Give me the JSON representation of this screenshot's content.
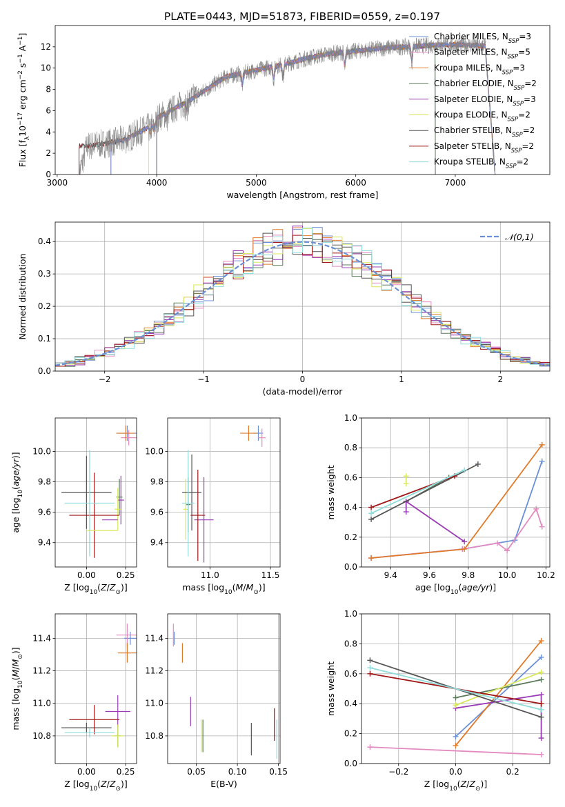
{
  "figure_title": "PLATE=0443, MJD=51873, FIBERID=0559, z=0.197",
  "colors": {
    "Chabrier MILES": "#6a8fd6",
    "Salpeter MILES": "#e38ac0",
    "Kroupa MILES": "#e07b2a",
    "Chabrier ELODIE": "#5a7a5a",
    "Salpeter ELODIE": "#9a3bb5",
    "Kroupa ELODIE": "#d8e85a",
    "Chabrier STELIB": "#555555",
    "Salpeter STELIB": "#a01818",
    "Kroupa STELIB": "#8fdcdc",
    "gaussian": "#6a8fd6"
  },
  "chart_data": [
    {
      "id": "spectrum",
      "type": "line",
      "title": "PLATE=0443, MJD=51873, FIBERID=0559, z=0.197",
      "xlabel": "wavelength [Angstrom, rest frame]",
      "ylabel": "Flux [f_λ 10^-17 erg cm^-2 s^-1 A^-1]",
      "xlim": [
        2980,
        7950
      ],
      "ylim": [
        0,
        14
      ],
      "xticks": [
        3000,
        4000,
        5000,
        6000,
        7000
      ],
      "yticks": [
        0,
        2,
        4,
        6,
        8,
        10,
        12
      ],
      "grid": false,
      "legend_position": "top-right",
      "legend": [
        {
          "model": "Chabrier MILES",
          "nssp": "3"
        },
        {
          "model": "Salpeter MILES",
          "nssp": "5"
        },
        {
          "model": "Kroupa MILES",
          "nssp": "3"
        },
        {
          "model": "Chabrier ELODIE",
          "nssp": "2"
        },
        {
          "model": "Salpeter ELODIE",
          "nssp": "3"
        },
        {
          "model": "Kroupa ELODIE",
          "nssp": "2"
        },
        {
          "model": "Chabrier STELIB",
          "nssp": "2"
        },
        {
          "model": "Salpeter STELIB",
          "nssp": "2"
        },
        {
          "model": "Kroupa STELIB",
          "nssp": "2"
        }
      ],
      "data_continuum": {
        "wavelength": [
          3220,
          3300,
          3500,
          3700,
          3800,
          3950,
          4100,
          4300,
          4500,
          4700,
          4900,
          5100,
          5300,
          5500,
          5700,
          5900,
          6100,
          6300,
          6500,
          6700,
          6900,
          7100,
          7300,
          7400
        ],
        "flux": [
          0.0,
          2.9,
          3.2,
          3.6,
          4.2,
          5.0,
          5.8,
          6.8,
          8.0,
          9.2,
          9.6,
          10.0,
          10.4,
          10.9,
          11.3,
          11.5,
          11.7,
          11.9,
          12.0,
          12.1,
          12.2,
          12.2,
          12.1,
          0.0
        ]
      },
      "model_start_wavelength": {
        "Chabrier MILES": 3540,
        "Salpeter MILES": 3540,
        "Kroupa MILES": 3540,
        "Chabrier ELODIE": 4000,
        "Salpeter ELODIE": 4000,
        "Kroupa ELODIE": 3920,
        "Chabrier STELIB": 3220,
        "Salpeter STELIB": 3220,
        "Kroupa STELIB": 3220
      },
      "model_end_wavelength": {
        "Chabrier MILES": 7400,
        "Salpeter MILES": 7400,
        "Kroupa MILES": 7400,
        "Chabrier ELODIE": 6800,
        "Salpeter ELODIE": 6800,
        "Kroupa ELODIE": 6800,
        "Chabrier STELIB": 7400,
        "Salpeter STELIB": 7400,
        "Kroupa STELIB": 7400
      }
    },
    {
      "id": "residuals",
      "type": "histogram",
      "xlabel": "(data-model)/error",
      "ylabel": "Normed distribution",
      "xlim": [
        -2.5,
        2.5
      ],
      "ylim": [
        0,
        0.46
      ],
      "xticks": [
        -2,
        -1,
        0,
        1,
        2
      ],
      "yticks": [
        0.0,
        0.1,
        0.2,
        0.3,
        0.4
      ],
      "grid": true,
      "legend": [
        {
          "label": "𝒩(0,1)",
          "style": "dashed"
        }
      ],
      "legend_position": "top-right",
      "bin_width": 0.1,
      "bin_start": -2.5,
      "approx_profile": "standard normal density with per-model scatter"
    },
    {
      "id": "age_vs_Z",
      "type": "scatter",
      "xlabel": "Z [log10(Z/Z⊙)]",
      "ylabel": "age [log10(age/yr)]",
      "xlim": [
        -0.2,
        0.32
      ],
      "ylim": [
        9.24,
        10.22
      ],
      "xticks": [
        0.0,
        0.25
      ],
      "yticks": [
        9.4,
        9.6,
        9.8,
        10.0
      ],
      "grid": true,
      "points": [
        {
          "model": "Chabrier MILES",
          "x": 0.26,
          "y": 10.12,
          "xerr": 0.06,
          "yerr": 0.05
        },
        {
          "model": "Salpeter MILES",
          "x": 0.27,
          "y": 10.09,
          "xerr": 0.05,
          "yerr": 0.05
        },
        {
          "model": "Kroupa MILES",
          "x": 0.25,
          "y": 10.12,
          "xerr": 0.06,
          "yerr": 0.05
        },
        {
          "model": "Chabrier ELODIE",
          "x": 0.21,
          "y": 9.7,
          "xerr": 0.02,
          "yerr": 0.12
        },
        {
          "model": "Salpeter ELODIE",
          "x": 0.22,
          "y": 9.68,
          "xerr": 0.02,
          "yerr": 0.16
        },
        {
          "model": "Kroupa ELODIE",
          "x": 0.2,
          "y": 9.62,
          "xerr": 0.02,
          "yerr": 0.14
        },
        {
          "model": "Chabrier STELIB",
          "x": 0.0,
          "y": 9.73,
          "xerr": 0.16,
          "yerr": 0.24
        },
        {
          "model": "Salpeter STELIB",
          "x": 0.05,
          "y": 9.58,
          "xerr": 0.16,
          "yerr": 0.28
        },
        {
          "model": "Kroupa STELIB",
          "x": 0.02,
          "y": 9.66,
          "xerr": 0.16,
          "yerr": 0.35
        },
        {
          "model": "Salpeter ELODIE",
          "x": 0.15,
          "y": 9.55,
          "xerr": 0.05,
          "yerr": 0.0
        },
        {
          "model": "Kroupa ELODIE",
          "x": 0.1,
          "y": 9.48,
          "xerr": 0.1,
          "yerr": 0.0
        }
      ]
    },
    {
      "id": "age_vs_mass",
      "type": "scatter",
      "xlabel": "mass [log10(M/M⊙)]",
      "ylabel": "",
      "xlim": [
        10.65,
        11.58
      ],
      "ylim": [
        9.24,
        10.22
      ],
      "xticks": [
        11.0,
        11.5
      ],
      "yticks": [
        9.4,
        9.6,
        9.8,
        10.0
      ],
      "grid": true,
      "points": [
        {
          "model": "Chabrier MILES",
          "x": 11.4,
          "y": 10.12,
          "xerr": 0.04,
          "yerr": 0.05
        },
        {
          "model": "Salpeter MILES",
          "x": 11.43,
          "y": 10.09,
          "xerr": 0.03,
          "yerr": 0.06
        },
        {
          "model": "Kroupa MILES",
          "x": 11.32,
          "y": 10.12,
          "xerr": 0.07,
          "yerr": 0.05
        },
        {
          "model": "Chabrier ELODIE",
          "x": 10.82,
          "y": 9.65,
          "xerr": 0.02,
          "yerr": 0.18
        },
        {
          "model": "Salpeter ELODIE",
          "x": 10.95,
          "y": 9.55,
          "xerr": 0.08,
          "yerr": 0.28
        },
        {
          "model": "Kroupa ELODIE",
          "x": 10.8,
          "y": 9.62,
          "xerr": 0.02,
          "yerr": 0.2
        },
        {
          "model": "Chabrier STELIB",
          "x": 10.85,
          "y": 9.73,
          "xerr": 0.08,
          "yerr": 0.25
        },
        {
          "model": "Salpeter STELIB",
          "x": 10.9,
          "y": 9.58,
          "xerr": 0.06,
          "yerr": 0.3
        },
        {
          "model": "Kroupa STELIB",
          "x": 10.82,
          "y": 9.66,
          "xerr": 0.05,
          "yerr": 0.35
        }
      ]
    },
    {
      "id": "weight_vs_age",
      "type": "line",
      "xlabel": "age [log10(age/yr)]",
      "ylabel": "mass weight",
      "xlim": [
        9.25,
        10.22
      ],
      "ylim": [
        0.0,
        1.0
      ],
      "xticks": [
        9.4,
        9.6,
        9.8,
        10.0,
        10.2
      ],
      "yticks": [
        0.0,
        0.2,
        0.4,
        0.6,
        0.8,
        1.0
      ],
      "grid": true,
      "series": [
        {
          "model": "Chabrier MILES",
          "x": [
            9.3,
            9.77,
            10.04,
            10.18
          ],
          "y": [
            0.06,
            0.12,
            0.18,
            0.71
          ]
        },
        {
          "model": "Salpeter MILES",
          "x": [
            9.3,
            9.77,
            9.95,
            10.0,
            10.15,
            10.18
          ],
          "y": [
            0.06,
            0.12,
            0.16,
            0.11,
            0.39,
            0.27
          ]
        },
        {
          "model": "Kroupa MILES",
          "x": [
            9.3,
            9.78,
            10.18
          ],
          "y": [
            0.06,
            0.12,
            0.82
          ]
        },
        {
          "model": "Chabrier ELODIE",
          "x": [
            9.48,
            9.7
          ],
          "y": [
            0.44,
            0.6
          ]
        },
        {
          "model": "Salpeter ELODIE",
          "x": [
            9.48,
            9.48,
            9.78
          ],
          "y": [
            0.37,
            0.44,
            0.17
          ]
        },
        {
          "model": "Kroupa ELODIE",
          "x": [
            9.48,
            9.48
          ],
          "y": [
            0.56,
            0.61
          ]
        },
        {
          "model": "Chabrier STELIB",
          "x": [
            9.3,
            9.85
          ],
          "y": [
            0.32,
            0.69
          ]
        },
        {
          "model": "Salpeter STELIB",
          "x": [
            9.3,
            9.73
          ],
          "y": [
            0.4,
            0.61
          ]
        },
        {
          "model": "Kroupa STELIB",
          "x": [
            9.3,
            9.78
          ],
          "y": [
            0.36,
            0.65
          ]
        }
      ]
    },
    {
      "id": "mass_vs_Z",
      "type": "scatter",
      "xlabel": "Z [log10(Z/Z⊙)]",
      "ylabel": "mass [log10(M/M⊙)]",
      "xlim": [
        -0.2,
        0.32
      ],
      "ylim": [
        10.63,
        11.55
      ],
      "xticks": [
        0.0,
        0.25
      ],
      "yticks": [
        10.8,
        11.0,
        11.2,
        11.4
      ],
      "grid": true,
      "points": [
        {
          "model": "Chabrier MILES",
          "x": 0.28,
          "y": 11.4,
          "xerr": 0.04,
          "yerr": 0.04
        },
        {
          "model": "Salpeter MILES",
          "x": 0.26,
          "y": 11.42,
          "xerr": 0.07,
          "yerr": 0.07
        },
        {
          "model": "Kroupa MILES",
          "x": 0.26,
          "y": 11.31,
          "xerr": 0.06,
          "yerr": 0.06
        },
        {
          "model": "Chabrier ELODIE",
          "x": 0.2,
          "y": 10.8,
          "xerr": 0.02,
          "yerr": 0.07
        },
        {
          "model": "Salpeter ELODIE",
          "x": 0.2,
          "y": 10.95,
          "xerr": 0.08,
          "yerr": 0.1
        },
        {
          "model": "Kroupa ELODIE",
          "x": 0.2,
          "y": 10.8,
          "xerr": 0.04,
          "yerr": 0.07
        },
        {
          "model": "Chabrier STELIB",
          "x": 0.0,
          "y": 10.85,
          "xerr": 0.16,
          "yerr": 0.03
        },
        {
          "model": "Salpeter STELIB",
          "x": 0.05,
          "y": 10.9,
          "xerr": 0.16,
          "yerr": 0.09
        },
        {
          "model": "Kroupa STELIB",
          "x": 0.02,
          "y": 10.82,
          "xerr": 0.16,
          "yerr": 0.03
        }
      ]
    },
    {
      "id": "mass_vs_ebv",
      "type": "scatter",
      "xlabel": "E(B-V)",
      "ylabel": "",
      "xlim": [
        0.015,
        0.152
      ],
      "ylim": [
        10.63,
        11.55
      ],
      "xticks": [
        0.05,
        0.1,
        0.15
      ],
      "yticks": [
        10.8,
        11.0,
        11.2,
        11.4
      ],
      "grid": true,
      "points": [
        {
          "model": "Chabrier MILES",
          "x": 0.023,
          "y": 11.4,
          "yerr": 0.04
        },
        {
          "model": "Salpeter MILES",
          "x": 0.022,
          "y": 11.42,
          "yerr": 0.07
        },
        {
          "model": "Kroupa MILES",
          "x": 0.033,
          "y": 11.31,
          "yerr": 0.06
        },
        {
          "model": "Chabrier ELODIE",
          "x": 0.058,
          "y": 10.8,
          "yerr": 0.1
        },
        {
          "model": "Salpeter ELODIE",
          "x": 0.043,
          "y": 10.95,
          "yerr": 0.09
        },
        {
          "model": "Kroupa ELODIE",
          "x": 0.056,
          "y": 10.8,
          "yerr": 0.1
        },
        {
          "model": "Chabrier STELIB",
          "x": 0.117,
          "y": 10.78,
          "yerr": 0.1
        },
        {
          "model": "Salpeter STELIB",
          "x": 0.145,
          "y": 10.87,
          "yerr": 0.1
        },
        {
          "model": "Kroupa STELIB",
          "x": 0.148,
          "y": 10.78,
          "yerr": 0.12
        }
      ]
    },
    {
      "id": "weight_vs_Z",
      "type": "line",
      "xlabel": "Z [log10(Z/Z⊙)]",
      "ylabel": "mass weight",
      "xlim": [
        -0.33,
        0.33
      ],
      "ylim": [
        0.0,
        1.0
      ],
      "xticks": [
        -0.2,
        0.0,
        0.2
      ],
      "yticks": [
        0.0,
        0.2,
        0.4,
        0.6,
        0.8,
        1.0
      ],
      "grid": true,
      "series": [
        {
          "model": "Chabrier MILES",
          "x": [
            0.0,
            0.3
          ],
          "y": [
            0.18,
            0.71
          ]
        },
        {
          "model": "Salpeter MILES",
          "x": [
            -0.3,
            0.3
          ],
          "y": [
            0.11,
            0.06
          ]
        },
        {
          "model": "Kroupa MILES",
          "x": [
            0.0,
            0.3
          ],
          "y": [
            0.12,
            0.82
          ]
        },
        {
          "model": "Chabrier ELODIE",
          "x": [
            0.0,
            0.3
          ],
          "y": [
            0.44,
            0.56
          ]
        },
        {
          "model": "Salpeter ELODIE",
          "x": [
            0.0,
            0.3,
            0.3
          ],
          "y": [
            0.37,
            0.46,
            0.17
          ]
        },
        {
          "model": "Kroupa ELODIE",
          "x": [
            0.0,
            0.3
          ],
          "y": [
            0.39,
            0.61
          ]
        },
        {
          "model": "Chabrier STELIB",
          "x": [
            -0.3,
            0.3
          ],
          "y": [
            0.69,
            0.31
          ]
        },
        {
          "model": "Salpeter STELIB",
          "x": [
            -0.3,
            0.3
          ],
          "y": [
            0.6,
            0.4
          ]
        },
        {
          "model": "Kroupa STELIB",
          "x": [
            -0.3,
            0.3
          ],
          "y": [
            0.64,
            0.36
          ]
        }
      ]
    }
  ]
}
